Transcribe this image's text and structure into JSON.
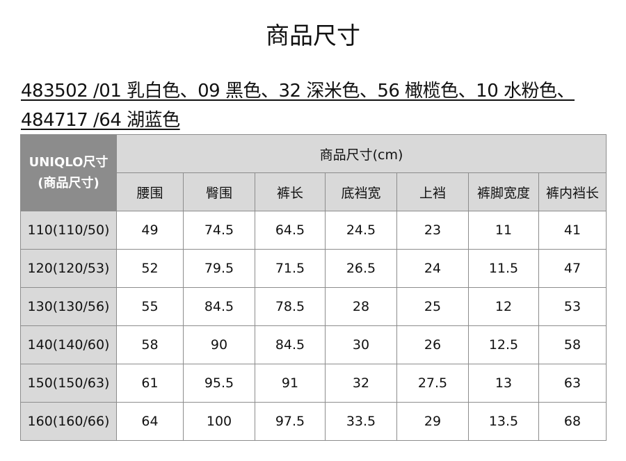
{
  "title": "商品尺寸",
  "subtitle": "483502 /01 乳白色、09 黑色、32 深米色、56 橄榄色、10 水粉色、484717 /64 湖蓝色",
  "table": {
    "corner_line1": "UNIQLO尺寸",
    "corner_line2": "(商品尺寸)",
    "group_header": "商品尺寸(cm)",
    "columns": [
      "腰围",
      "臀围",
      "裤长",
      "底裆宽",
      "上裆",
      "裤脚宽度",
      "裤内裆长"
    ],
    "rows": [
      {
        "size": "110(110/50)",
        "values": [
          "49",
          "74.5",
          "64.5",
          "24.5",
          "23",
          "11",
          "41"
        ]
      },
      {
        "size": "120(120/53)",
        "values": [
          "52",
          "79.5",
          "71.5",
          "26.5",
          "24",
          "11.5",
          "47"
        ]
      },
      {
        "size": "130(130/56)",
        "values": [
          "55",
          "84.5",
          "78.5",
          "28",
          "25",
          "12",
          "53"
        ]
      },
      {
        "size": "140(140/60)",
        "values": [
          "58",
          "90",
          "84.5",
          "30",
          "26",
          "12.5",
          "58"
        ]
      },
      {
        "size": "150(150/63)",
        "values": [
          "61",
          "95.5",
          "91",
          "32",
          "27.5",
          "13",
          "63"
        ]
      },
      {
        "size": "160(160/66)",
        "values": [
          "64",
          "100",
          "97.5",
          "33.5",
          "29",
          "13.5",
          "68"
        ]
      }
    ]
  }
}
